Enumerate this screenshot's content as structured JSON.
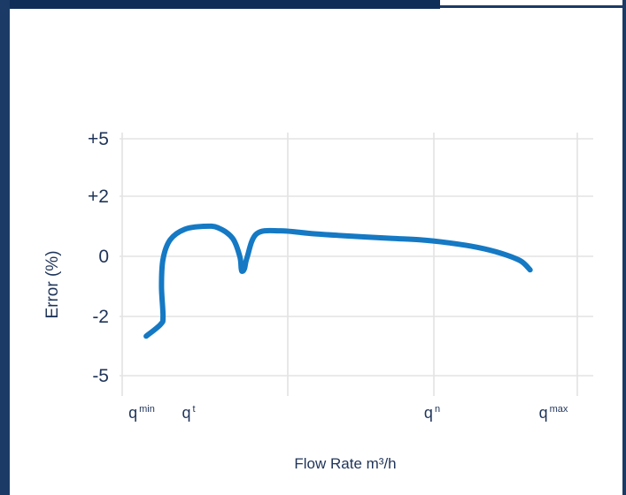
{
  "chart_data": {
    "type": "line",
    "y_ticks": [
      "+5",
      "+2",
      "0",
      "-2",
      "-5"
    ],
    "x_ticks": [
      {
        "base": "q",
        "sub": "min"
      },
      {
        "base": "q",
        "sub": "t"
      },
      {
        "base": "q",
        "sub": "n"
      },
      {
        "base": "q",
        "sub": "max"
      }
    ],
    "ylabel": "Error (%)",
    "xlabel": "Flow Rate m³/h",
    "series": [
      {
        "color": "#1579c4",
        "points": [
          [
            0.05,
            -3.0
          ],
          [
            0.08,
            -2.4
          ],
          [
            0.085,
            -2.0
          ],
          [
            0.082,
            -1.0
          ],
          [
            0.085,
            -0.1
          ],
          [
            0.1,
            0.55
          ],
          [
            0.13,
            0.9
          ],
          [
            0.17,
            1.0
          ],
          [
            0.2,
            0.95
          ],
          [
            0.23,
            0.6
          ],
          [
            0.245,
            0.0
          ],
          [
            0.248,
            -0.4
          ],
          [
            0.25,
            -0.5
          ],
          [
            0.255,
            -0.4
          ],
          [
            0.26,
            -0.05
          ],
          [
            0.28,
            0.75
          ],
          [
            0.33,
            0.85
          ],
          [
            0.4,
            0.75
          ],
          [
            0.48,
            0.67
          ],
          [
            0.56,
            0.6
          ],
          [
            0.62,
            0.55
          ],
          [
            0.68,
            0.45
          ],
          [
            0.74,
            0.3
          ],
          [
            0.79,
            0.1
          ],
          [
            0.83,
            -0.15
          ],
          [
            0.85,
            -0.45
          ]
        ]
      }
    ],
    "grid": true
  }
}
